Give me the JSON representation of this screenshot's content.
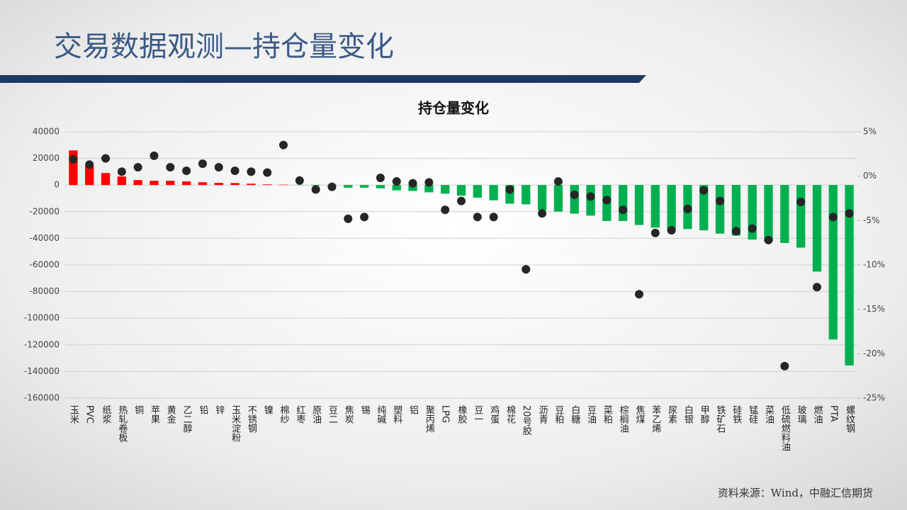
{
  "header": {
    "title": "交易数据观测—持仓量变化"
  },
  "chart_data": {
    "type": "bar-dot",
    "title": "持仓量变化",
    "categories": [
      "玉米",
      "PVC",
      "纸浆",
      "热轧卷板",
      "铜",
      "苹果",
      "黄金",
      "乙二醇",
      "铅",
      "锌",
      "玉米淀粉",
      "不锈钢",
      "镍",
      "棉纱",
      "红枣",
      "原油",
      "豆二",
      "焦炭",
      "锡",
      "纯碱",
      "塑料",
      "铝",
      "聚丙烯",
      "LPG",
      "橡胶",
      "豆一",
      "鸡蛋",
      "棉花",
      "20号胶",
      "沥青",
      "豆粕",
      "白糖",
      "豆油",
      "菜粕",
      "棕榈油",
      "焦煤",
      "苯乙烯",
      "尿素",
      "白银",
      "甲醇",
      "铁矿石",
      "硅铁",
      "锰硅",
      "菜油",
      "低硫燃料油",
      "玻璃",
      "燃油",
      "PTA",
      "螺纹钢"
    ],
    "series": [
      {
        "type": "bar",
        "colors": {
          "positive": "#ff0000",
          "negative": "#00b050"
        },
        "values": [
          26000,
          14300,
          9000,
          6400,
          3700,
          3200,
          3200,
          2700,
          2100,
          1600,
          1500,
          1000,
          500,
          300,
          -200,
          -500,
          -1000,
          -2000,
          -2000,
          -2500,
          -4000,
          -4500,
          -5500,
          -6500,
          -8000,
          -9500,
          -11500,
          -14000,
          -14500,
          -19000,
          -20000,
          -21500,
          -23000,
          -27000,
          -27000,
          -30000,
          -32000,
          -33000,
          -33000,
          -34000,
          -36500,
          -38000,
          -41000,
          -42500,
          -43500,
          -47000,
          -65000,
          -116000,
          -135500
        ]
      },
      {
        "type": "dot",
        "axis": "y2",
        "color": "#262626",
        "values": [
          1.9,
          1.3,
          2.0,
          0.5,
          1.0,
          2.3,
          1.0,
          0.6,
          1.4,
          1.0,
          0.6,
          0.5,
          0.4,
          3.5,
          -0.5,
          -1.5,
          -1.2,
          -4.8,
          -4.6,
          -0.2,
          -0.6,
          -0.8,
          -0.7,
          -3.8,
          -2.8,
          -4.6,
          -4.6,
          -1.5,
          -10.5,
          -4.2,
          -0.6,
          -2.1,
          -2.3,
          -2.7,
          -3.8,
          -13.3,
          -6.4,
          -6.1,
          -3.7,
          -1.6,
          -2.8,
          -6.2,
          -5.9,
          -7.2,
          -21.4,
          -2.9,
          -12.5,
          -4.6,
          -4.2
        ]
      }
    ],
    "ylim": [
      -160000,
      40000
    ],
    "yticks": [
      -160000,
      -140000,
      -120000,
      -100000,
      -80000,
      -60000,
      -40000,
      -20000,
      0,
      20000,
      40000
    ],
    "y2lim": [
      -25,
      5
    ],
    "y2ticks": [
      {
        "value": -25,
        "label": "-25%"
      },
      {
        "value": -20,
        "label": "-20%"
      },
      {
        "value": -15,
        "label": "-15%"
      },
      {
        "value": -10,
        "label": "-10%"
      },
      {
        "value": -5,
        "label": "-5%"
      },
      {
        "value": 0,
        "label": "0%"
      },
      {
        "value": 5,
        "label": "5%"
      }
    ],
    "grid": true
  },
  "footer": {
    "source": "资料来源：Wind，中融汇信期货"
  }
}
